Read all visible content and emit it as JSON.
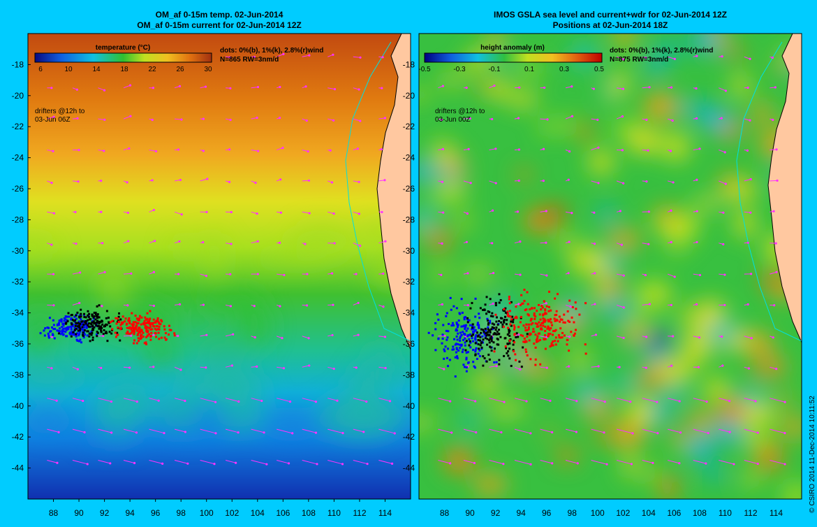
{
  "left_panel": {
    "title_line1": "OM_af 0-15m temp. 02-Jun-2014",
    "title_line2": "OM_af 0-15m current for 02-Jun-2014 12Z",
    "colorbar_label": "temperature (°C)",
    "colorbar_ticks": [
      "6",
      "10",
      "14",
      "18",
      "22",
      "26",
      "30"
    ],
    "info_line1": "dots: 0%(b), 1%(k), 2.8%(r)wind",
    "info_line2": "N=865 RW=3nm/d",
    "drifter_line1": "drifters @12h to",
    "drifter_line2": "03-Jun 06Z"
  },
  "right_panel": {
    "title_line1": "IMOS GSLA sea level and current+wdr for 02-Jun-2014 12Z",
    "title_line2": "Positions at 02-Jun-2014 18Z",
    "colorbar_label": "height anomaly (m)",
    "colorbar_ticks": [
      "-0.5",
      "-0.3",
      "-0.1",
      "0.1",
      "0.3",
      "0.5"
    ],
    "info_line1": "dots: 0%(b), 1%(k), 2.8%(r)wind",
    "info_line2": "N=875 RW=3nm/d",
    "drifter_line1": "drifters @12h to",
    "drifter_line2": "03-Jun 00Z"
  },
  "axes": {
    "lat_ticks": [
      "-18",
      "-20",
      "-22",
      "-24",
      "-26",
      "-28",
      "-30",
      "-32",
      "-34",
      "-36",
      "-38",
      "-40",
      "-42",
      "-44"
    ],
    "lon_ticks": [
      "88",
      "90",
      "92",
      "94",
      "96",
      "98",
      "100",
      "102",
      "104",
      "106",
      "108",
      "110",
      "112",
      "114"
    ],
    "lat_range": [
      -46,
      -16
    ],
    "lon_range": [
      86,
      116
    ]
  },
  "credit": "© CSIRO 2014   11-Dec-2014 10:11:52",
  "colors": {
    "background": "#00ccff",
    "land": "#ffc8a0",
    "coastline": "#00e0e0",
    "current_arrows": "#ff33ff",
    "drifters_0pct": "#0000ff",
    "drifters_1pct": "#000000",
    "drifters_wind": "#ff0000"
  }
}
